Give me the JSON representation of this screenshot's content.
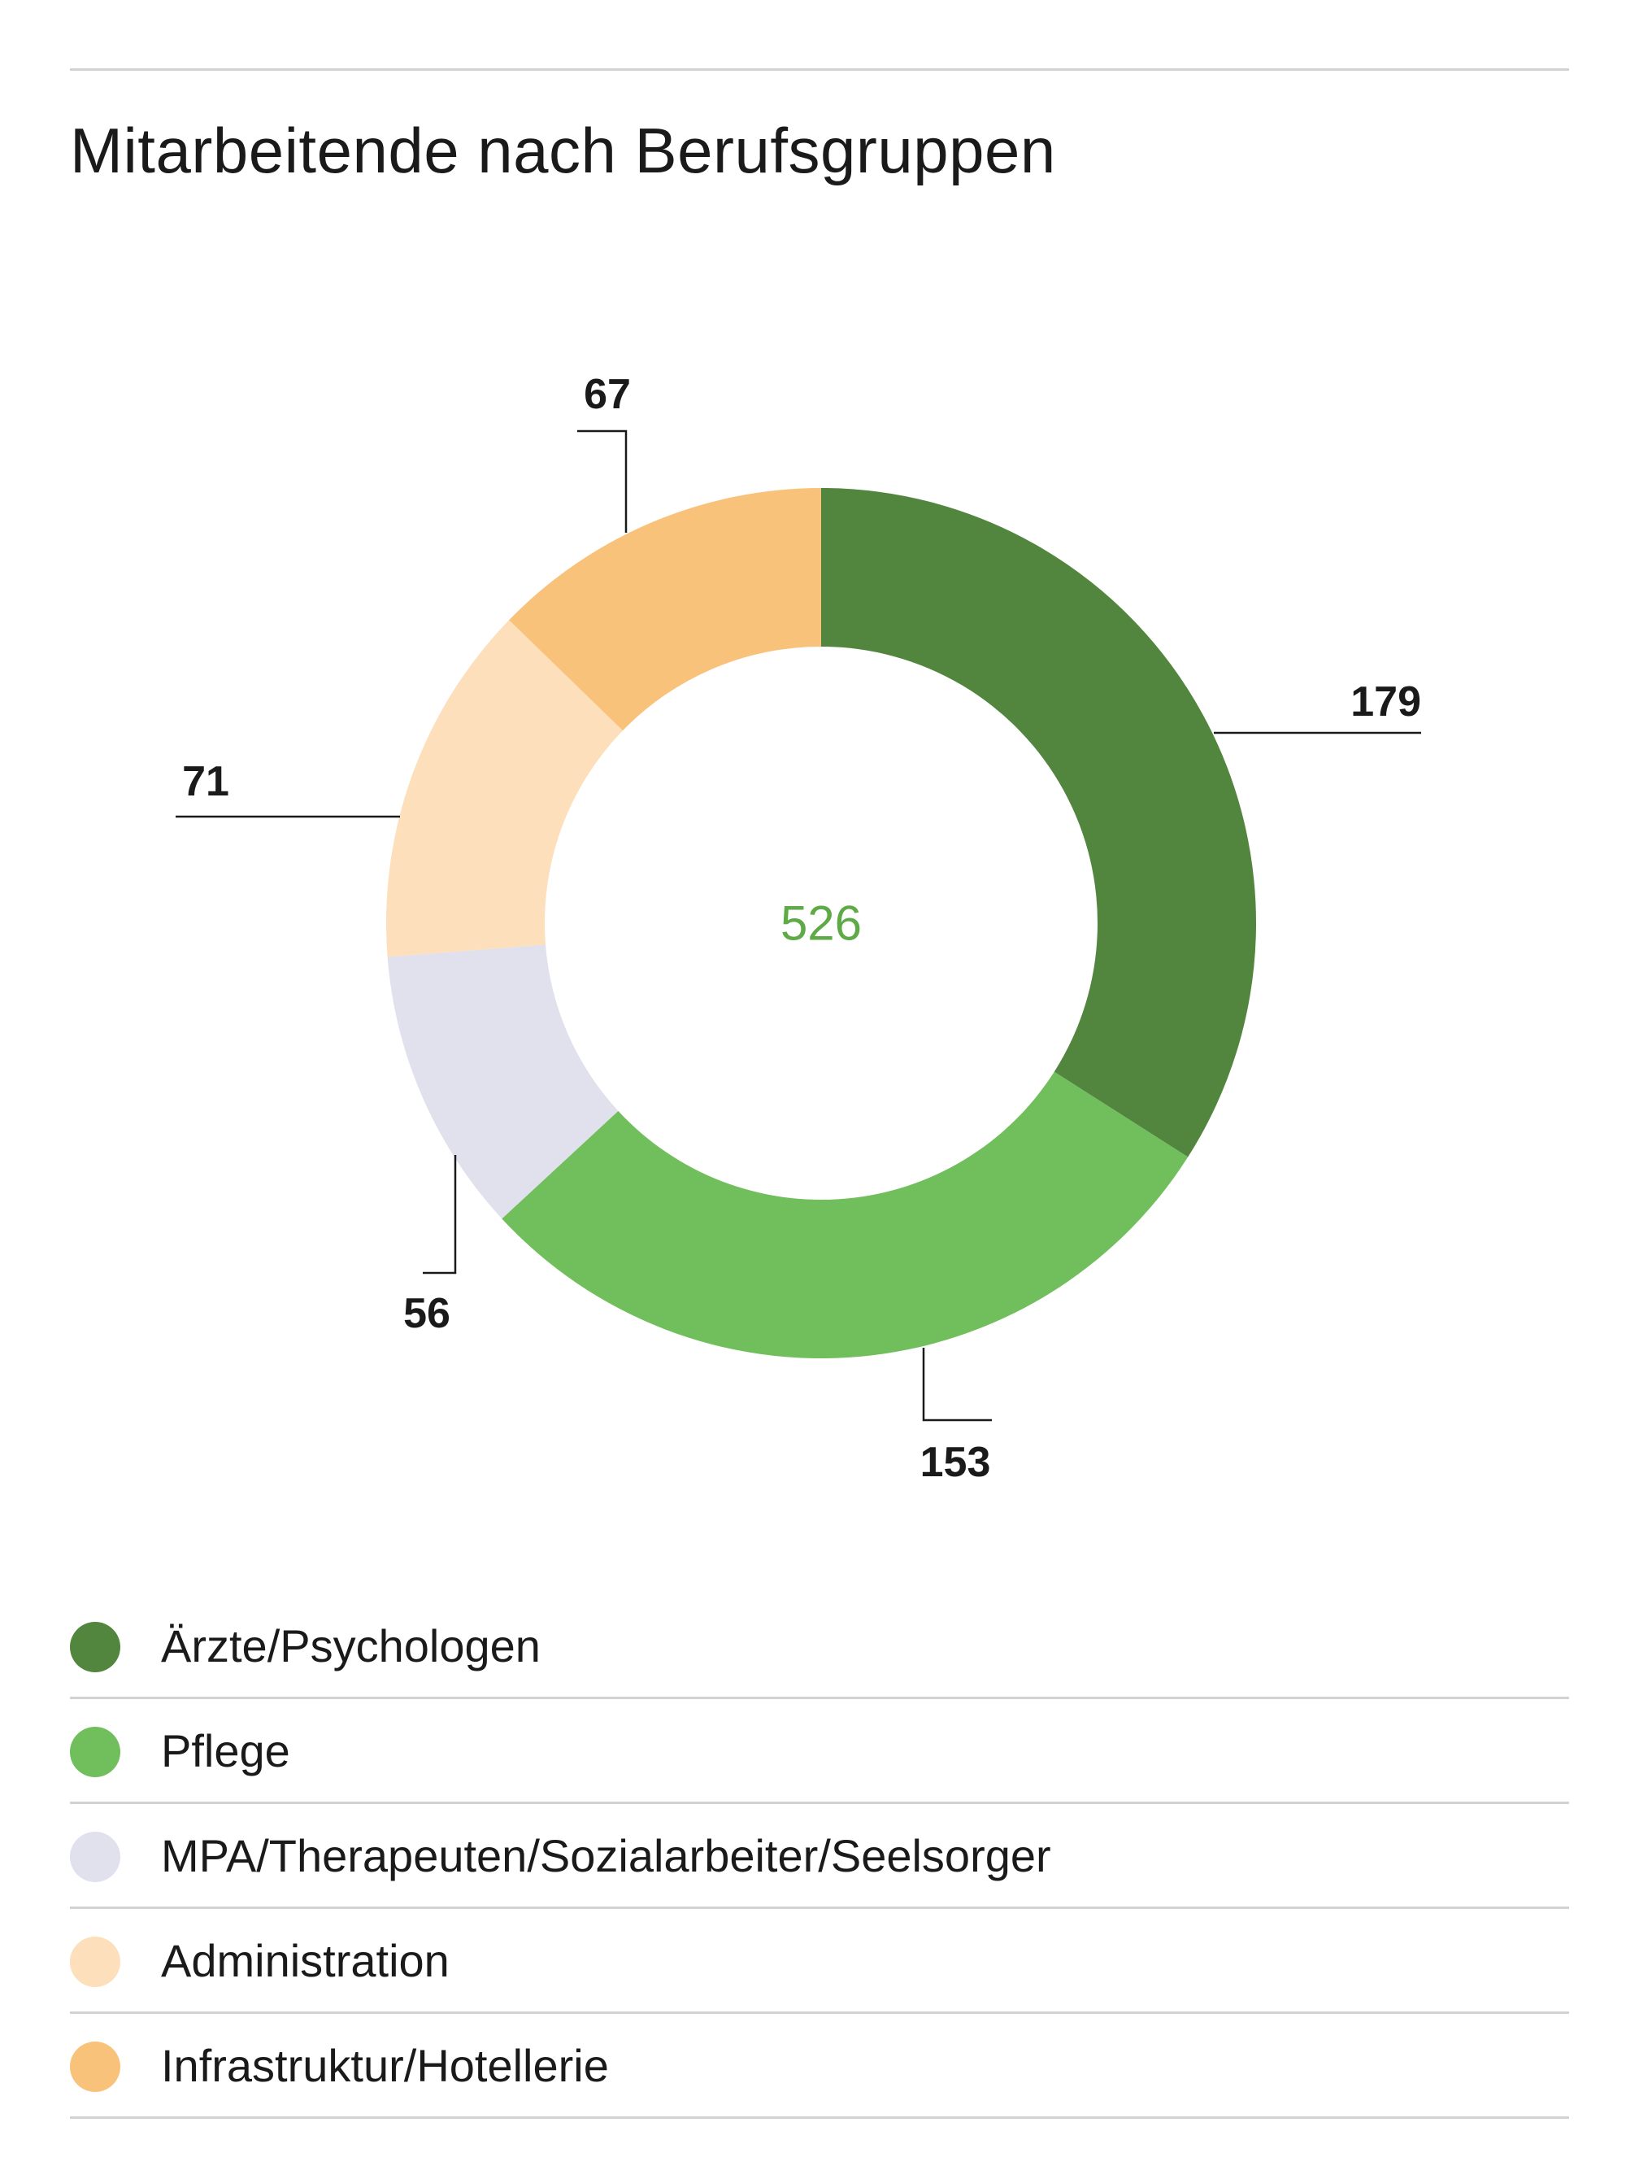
{
  "title": "Mitarbeitende nach Berufsgruppen",
  "chart_data": {
    "type": "pie",
    "subtype": "donut",
    "title": "Mitarbeitende nach Berufsgruppen",
    "center_label": "526",
    "categories": [
      "Ärzte/Psychologen",
      "Pflege",
      "MPA/Therapeuten/Sozialarbeiter/Seelsorger",
      "Administration",
      "Infrastruktur/Hotellerie"
    ],
    "values": [
      179,
      153,
      56,
      71,
      67
    ],
    "data_labels": [
      "179",
      "153",
      "56",
      "71",
      "67"
    ],
    "colors": [
      "#52853d",
      "#70bf5c",
      "#e0e1ec",
      "#fddfbb",
      "#f9c27b"
    ],
    "center_label_color": "#5daa47",
    "legend_placement": "bottom"
  },
  "legend": [
    {
      "label": "Ärzte/Psychologen",
      "color": "#52853d"
    },
    {
      "label": "Pflege",
      "color": "#70bf5c"
    },
    {
      "label": "MPA/Therapeuten/Sozialarbeiter/Seelsorger",
      "color": "#e0e1ec"
    },
    {
      "label": "Administration",
      "color": "#fddfbb"
    },
    {
      "label": "Infrastruktur/Hotellerie",
      "color": "#f9c27b"
    }
  ]
}
